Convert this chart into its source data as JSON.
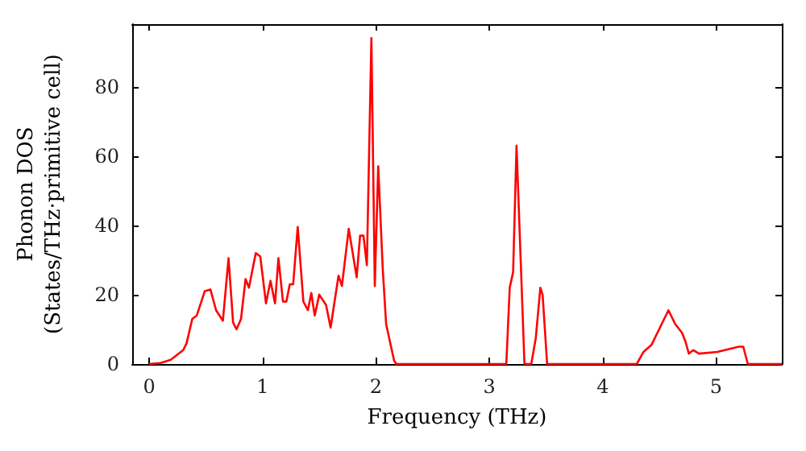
{
  "chart_data": {
    "type": "line",
    "xlabel": "Frequency (THz)",
    "ylabel": "Phonon DOS\n(States/THz·primitive cell)",
    "xlim": [
      -0.15,
      5.58
    ],
    "xticks": [
      0,
      1,
      2,
      3,
      4,
      5
    ],
    "ylim": [
      0,
      98
    ],
    "yticks": [
      0,
      20,
      40,
      60,
      80
    ],
    "marker": "none",
    "line_style": "solid",
    "series": [
      {
        "color": "#ff0000",
        "x": [
          0,
          0.1,
          0.19,
          0.3,
          0.33,
          0.38,
          0.42,
          0.49,
          0.54,
          0.59,
          0.65,
          0.7,
          0.74,
          0.77,
          0.81,
          0.85,
          0.88,
          0.94,
          0.98,
          1.03,
          1.07,
          1.11,
          1.14,
          1.18,
          1.21,
          1.24,
          1.27,
          1.31,
          1.36,
          1.4,
          1.43,
          1.46,
          1.5,
          1.56,
          1.6,
          1.67,
          1.7,
          1.76,
          1.83,
          1.86,
          1.89,
          1.92,
          1.96,
          1.99,
          2.02,
          2.06,
          2.09,
          2.16,
          2.18,
          3.15,
          3.18,
          3.21,
          3.24,
          3.31,
          3.37,
          3.41,
          3.45,
          3.47,
          3.51,
          4.3,
          4.36,
          4.43,
          4.52,
          4.58,
          4.64,
          4.7,
          4.73,
          4.76,
          4.8,
          4.85,
          5.01,
          5.2,
          5.24,
          5.28,
          5.58
        ],
        "values": [
          0,
          0.3,
          1.2,
          4,
          6,
          13,
          14,
          21,
          21.5,
          15.5,
          12.5,
          30.5,
          12,
          10,
          13,
          24.5,
          22,
          32,
          31,
          17.5,
          24,
          17.5,
          30.5,
          18,
          18,
          23,
          23,
          39.5,
          18,
          15.5,
          20.5,
          14,
          20,
          17,
          10.5,
          25.5,
          22.5,
          39,
          25,
          37,
          37,
          28.5,
          94,
          22.5,
          57,
          27.5,
          11.5,
          1,
          0,
          0,
          22,
          26.5,
          63,
          0,
          0,
          7.5,
          22,
          20,
          0,
          0,
          3.5,
          5.5,
          11.5,
          15.5,
          11.5,
          9,
          6.5,
          3,
          4,
          3,
          3.5,
          5,
          5,
          0,
          0
        ]
      }
    ]
  }
}
